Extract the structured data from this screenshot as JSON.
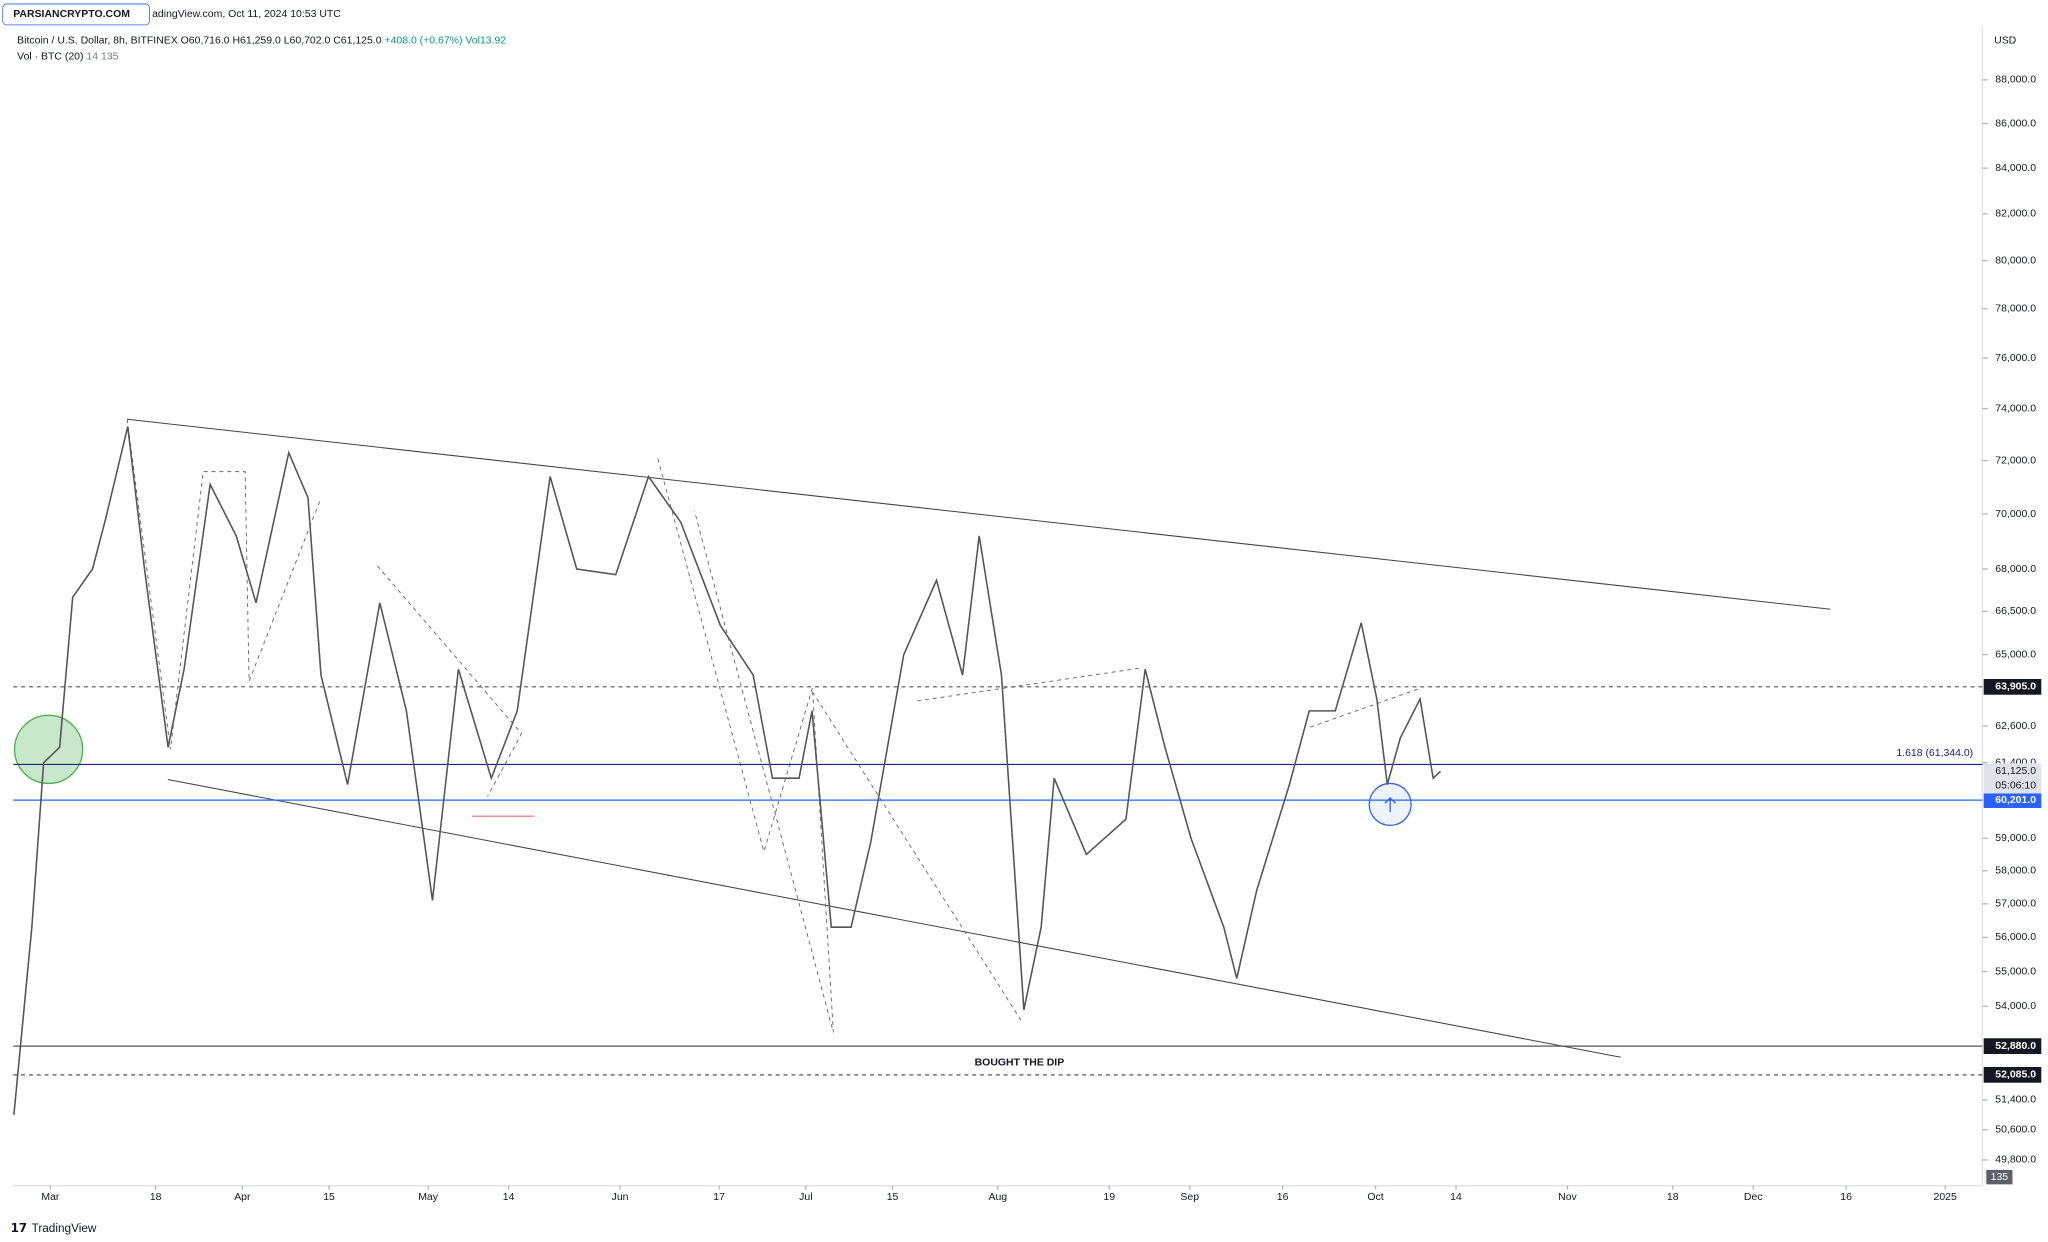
{
  "chart_data": {
    "type": "line",
    "watermark": "PARSIANCRYPTO.COM",
    "header": "adingView.com, Oct 11, 2024 10:53 UTC",
    "title": "Bitcoin / U.S. Dollar, 8h, BITFINEX",
    "ohlc": [
      "O60,716.0",
      "H61,259.0",
      "L60,702.0",
      "C61,125.0",
      "+408.0 (+0.67%)",
      "Vol13.92"
    ],
    "volume_legend": [
      "Vol · BTC (20)",
      "14",
      "135"
    ],
    "volume_label": "135",
    "currency": "USD",
    "annotation": "BOUGHT THE DIP",
    "fib_label": "1.618 (61,344.0)",
    "footer": "TradingView",
    "log_scale": true,
    "grid": false,
    "series": [
      {
        "name": "BTCUSD",
        "color": "#555555",
        "x": [
          -5.9,
          -3.0,
          -1.1,
          1.5,
          3.6,
          6.8,
          8.9,
          12.5,
          15.2,
          19.0,
          21.6,
          25.8,
          30.0,
          33.2,
          38.5,
          41.6,
          43.7,
          48.0,
          53.2,
          57.5,
          61.7,
          65.9,
          71.2,
          75.4,
          80.7,
          85.0,
          91.3,
          96.6,
          101.8,
          108.2,
          113.5,
          116.6,
          120.9,
          123.0,
          126.1,
          129.3,
          132.5,
          137.8,
          143.1,
          147.3,
          150.0,
          153.6,
          157.2,
          160.0,
          162.1,
          167.3,
          173.7,
          176.8,
          180.0,
          184.2,
          189.5,
          191.6,
          194.8,
          200.1,
          203.3,
          207.5,
          211.7,
          214.2,
          215.9,
          218.0,
          221.2,
          223.3,
          224.5
        ],
        "values": [
          51000,
          56300,
          61400,
          61900,
          67000,
          68000,
          69800,
          73300,
          68000,
          61900,
          64500,
          71100,
          69200,
          66800,
          72300,
          70600,
          64300,
          60700,
          66800,
          63100,
          57100,
          64500,
          60900,
          63100,
          71400,
          68000,
          67800,
          71400,
          69700,
          66000,
          64300,
          60900,
          60900,
          63100,
          56300,
          56300,
          58900,
          65000,
          67600,
          64300,
          69200,
          64300,
          53900,
          56300,
          60900,
          58500,
          59600,
          64500,
          61900,
          59000,
          56300,
          54800,
          57400,
          60700,
          63100,
          63100,
          66100,
          63500,
          60700,
          62200,
          63500,
          60900,
          61125
        ]
      }
    ],
    "xlim": [
      -6,
      312
    ],
    "xticks": [
      {
        "value": 0,
        "label": "Mar"
      },
      {
        "value": 17,
        "label": "18"
      },
      {
        "value": 31,
        "label": "Apr"
      },
      {
        "value": 45,
        "label": "15"
      },
      {
        "value": 61,
        "label": "May"
      },
      {
        "value": 74,
        "label": "14"
      },
      {
        "value": 92,
        "label": "Jun"
      },
      {
        "value": 108,
        "label": "17"
      },
      {
        "value": 122,
        "label": "Jul"
      },
      {
        "value": 136,
        "label": "15"
      },
      {
        "value": 153,
        "label": "Aug"
      },
      {
        "value": 171,
        "label": "19"
      },
      {
        "value": 184,
        "label": "Sep"
      },
      {
        "value": 199,
        "label": "16"
      },
      {
        "value": 214,
        "label": "Oct"
      },
      {
        "value": 227,
        "label": "14"
      },
      {
        "value": 245,
        "label": "Nov"
      },
      {
        "value": 262,
        "label": "18"
      },
      {
        "value": 275,
        "label": "Dec"
      },
      {
        "value": 290,
        "label": "16"
      },
      {
        "value": 306,
        "label": "2025"
      }
    ],
    "ylim": [
      49130,
      90400
    ],
    "yticks": [
      {
        "value": 88000,
        "label": "88,000.0"
      },
      {
        "value": 86000,
        "label": "86,000.0"
      },
      {
        "value": 84000,
        "label": "84,000.0"
      },
      {
        "value": 82000,
        "label": "82,000.0"
      },
      {
        "value": 80000,
        "label": "80,000.0"
      },
      {
        "value": 78000,
        "label": "78,000.0"
      },
      {
        "value": 76000,
        "label": "76,000.0"
      },
      {
        "value": 74000,
        "label": "74,000.0"
      },
      {
        "value": 72000,
        "label": "72,000.0"
      },
      {
        "value": 70000,
        "label": "70,000.0"
      },
      {
        "value": 68000,
        "label": "68,000.0"
      },
      {
        "value": 66500,
        "label": "66,500.0"
      },
      {
        "value": 65000,
        "label": "65,000.0"
      },
      {
        "value": 62600,
        "label": "62,600.0"
      },
      {
        "value": 61400,
        "label": "61,400.0"
      },
      {
        "value": 59000,
        "label": "59,000.0"
      },
      {
        "value": 58000,
        "label": "58,000.0"
      },
      {
        "value": 57000,
        "label": "57,000.0"
      },
      {
        "value": 56000,
        "label": "56,000.0"
      },
      {
        "value": 55000,
        "label": "55,000.0"
      },
      {
        "value": 54000,
        "label": "54,000.0"
      },
      {
        "value": 51400,
        "label": "51,400.0"
      },
      {
        "value": 50600,
        "label": "50,600.0"
      },
      {
        "value": 49800,
        "label": "49,800.0"
      }
    ],
    "price_lines": [
      {
        "value": 63905,
        "label": "63,905.0",
        "color": "#555555",
        "dashed": true,
        "box": "#131722"
      },
      {
        "value": 61344,
        "color": "#1a237e",
        "dashed": false
      },
      {
        "value": 60201,
        "label": "60,201.0",
        "color": "#2962ff",
        "dashed": false,
        "box": "#2962ff"
      },
      {
        "value": 52880,
        "label": "52,880.0",
        "color": "#555555",
        "dashed": false,
        "box": "#131722"
      },
      {
        "value": 52085,
        "label": "52,085.0",
        "color": "#555555",
        "dashed": true,
        "box": "#131722"
      }
    ],
    "last_price": {
      "value": 61125,
      "label": "61,125.0",
      "countdown": "05:06:10"
    }
  }
}
